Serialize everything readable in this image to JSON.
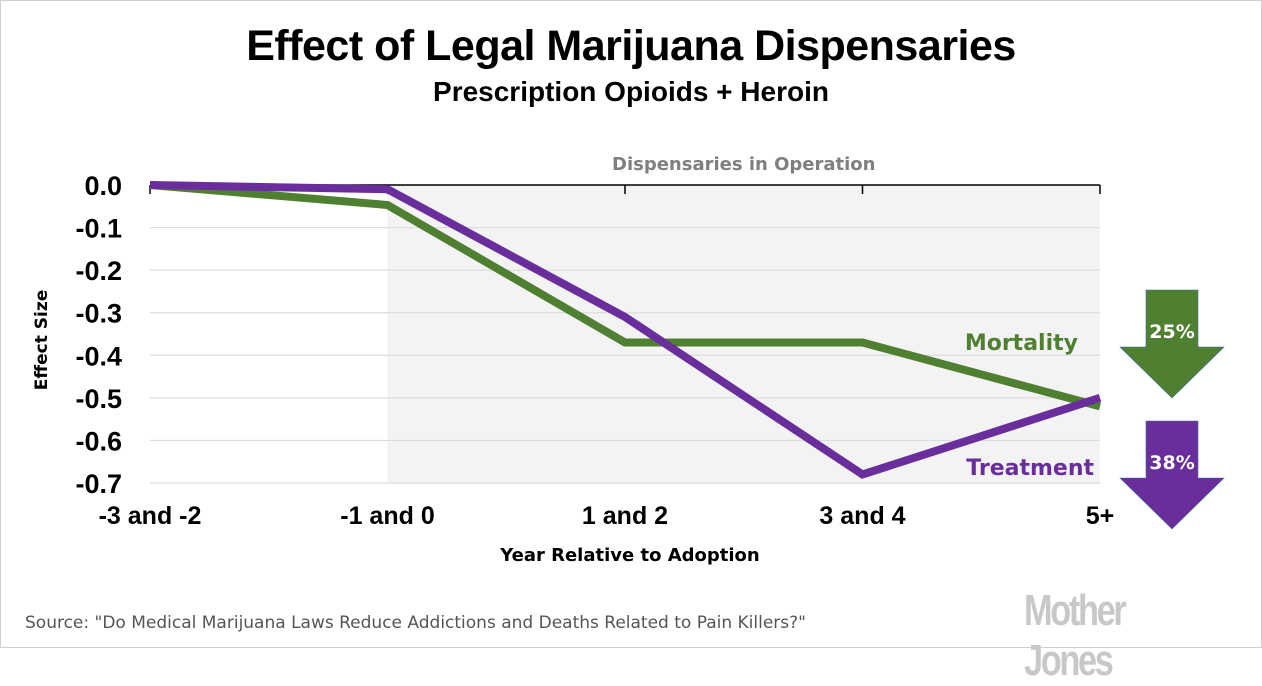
{
  "chart_data": {
    "type": "line",
    "title": "Effect of Legal Marijuana Dispensaries",
    "subtitle": "Prescription Opioids + Heroin",
    "xlabel": "Year Relative to Adoption",
    "ylabel": "Effect Size",
    "categories": [
      "-3 and -2",
      "-1 and 0",
      "1 and 2",
      "3 and 4",
      "5+"
    ],
    "ylim": [
      -0.7,
      0.0
    ],
    "yticks": [
      "0.0",
      "-0.1",
      "-0.2",
      "-0.3",
      "-0.4",
      "-0.5",
      "-0.6",
      "-0.7"
    ],
    "ytick_values": [
      0.0,
      -0.1,
      -0.2,
      -0.3,
      -0.4,
      -0.5,
      -0.6,
      -0.7
    ],
    "grid": true,
    "shaded_region": {
      "label": "Dispensaries in Operation",
      "from_category": "-1 and 0",
      "to_category": "5+"
    },
    "series": [
      {
        "name": "Mortality",
        "color": "#4f7f31",
        "values": [
          0.0,
          -0.047,
          -0.37,
          -0.37,
          -0.52
        ]
      },
      {
        "name": "Treatment",
        "color": "#6a2e9c",
        "values": [
          0.0,
          -0.01,
          -0.31,
          -0.68,
          -0.5
        ]
      }
    ],
    "annotations": [
      {
        "label": "25%",
        "series": "Mortality",
        "direction": "down",
        "color": "#4f7f31"
      },
      {
        "label": "38%",
        "series": "Treatment",
        "direction": "down",
        "color": "#6a2e9c"
      }
    ]
  },
  "source": "Source: \"Do Medical Marijuana Laws Reduce Addictions and Deaths Related to Pain Killers?\"",
  "logo": "Mother Jones"
}
